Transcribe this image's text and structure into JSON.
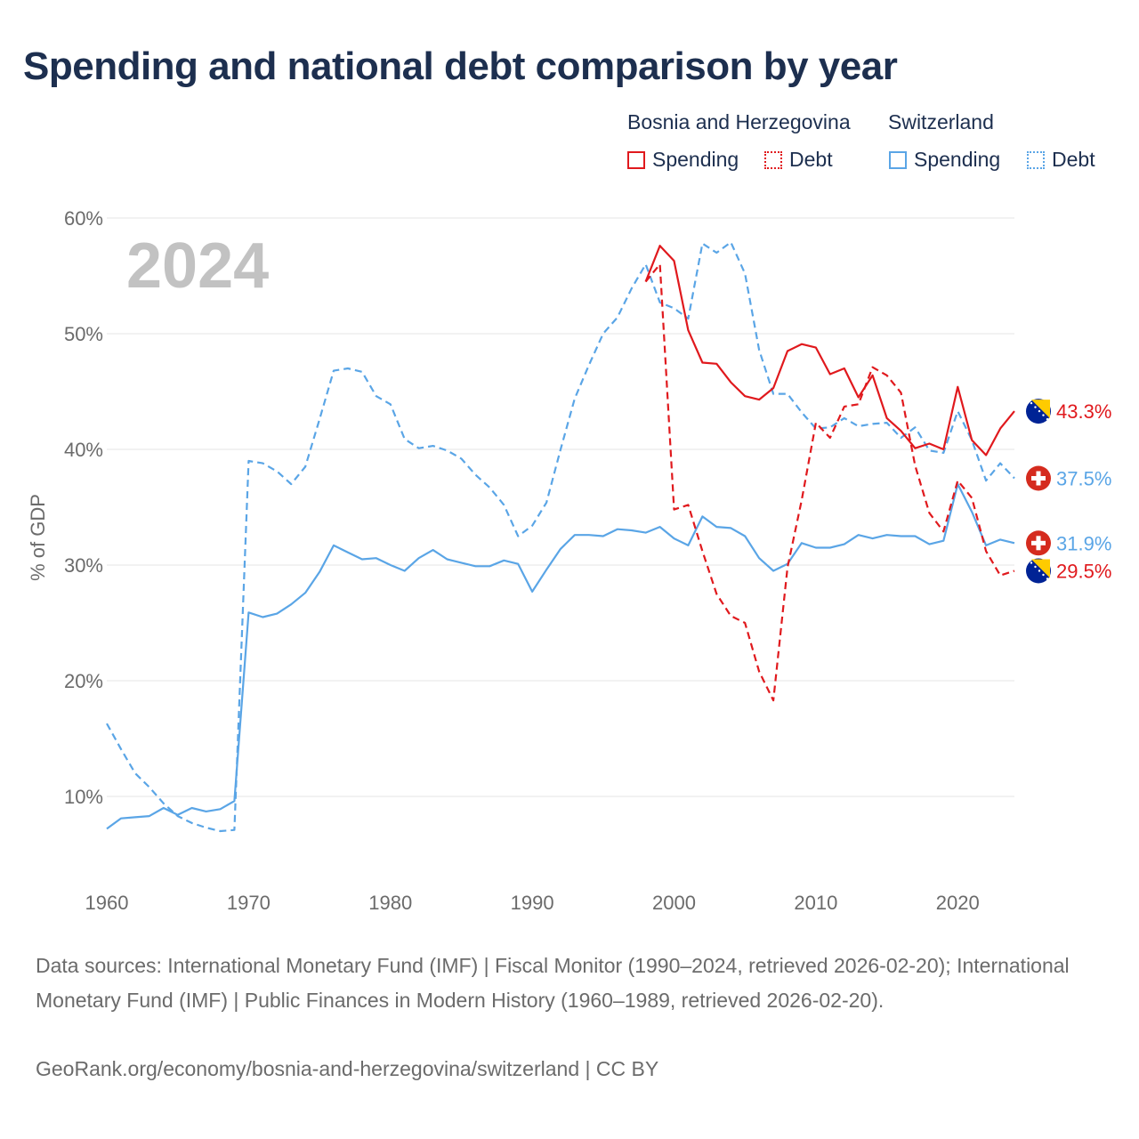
{
  "title": "Spending and national debt comparison by year",
  "legend": {
    "groups": [
      "Bosnia and Herzegovina",
      "Switzerland"
    ],
    "spending_label": "Spending",
    "debt_label": "Debt"
  },
  "colors": {
    "bosnia": "#e0191d",
    "switzerland": "#5aa5e6"
  },
  "footer": {
    "sources": "Data sources: International Monetary Fund (IMF) | Fiscal Monitor (1990–2024, retrieved 2026-02-20); International Monetary Fund (IMF) | Public Finances in Modern History (1960–1989, retrieved 2026-02-20).",
    "credit": "GeoRank.org/economy/bosnia-and-herzegovina/switzerland | CC BY"
  },
  "chart_data": {
    "type": "line",
    "year_watermark": "2024",
    "ylabel": "% of GDP",
    "xlim": [
      1960,
      2024
    ],
    "ylim": [
      2,
      60
    ],
    "x_ticks": [
      1960,
      1970,
      1980,
      1990,
      2000,
      2010,
      2020
    ],
    "y_ticks": [
      10,
      20,
      30,
      40,
      50,
      60
    ],
    "y_tick_labels": [
      "10%",
      "20%",
      "30%",
      "40%",
      "50%",
      "60%"
    ],
    "grid": true,
    "series": [
      {
        "name": "Switzerland Debt",
        "country": "Switzerland",
        "kind": "Debt",
        "color": "#5aa5e6",
        "dashed": true,
        "end_label": "37.5%",
        "years": [
          1960,
          1961,
          1962,
          1963,
          1964,
          1965,
          1966,
          1967,
          1968,
          1969,
          1970,
          1971,
          1972,
          1973,
          1974,
          1975,
          1976,
          1977,
          1978,
          1979,
          1980,
          1981,
          1982,
          1983,
          1984,
          1985,
          1986,
          1987,
          1988,
          1989,
          1990,
          1991,
          1992,
          1993,
          1994,
          1995,
          1996,
          1997,
          1998,
          1999,
          2000,
          2001,
          2002,
          2003,
          2004,
          2005,
          2006,
          2007,
          2008,
          2009,
          2010,
          2011,
          2012,
          2013,
          2014,
          2015,
          2016,
          2017,
          2018,
          2019,
          2020,
          2021,
          2022,
          2023,
          2024
        ],
        "values": [
          16.3,
          14.1,
          12.0,
          10.8,
          9.4,
          8.3,
          7.7,
          7.3,
          7.0,
          7.1,
          39.0,
          38.8,
          38.1,
          37.0,
          38.5,
          42.6,
          46.8,
          47.0,
          46.7,
          44.6,
          43.9,
          40.9,
          40.1,
          40.3,
          39.9,
          39.2,
          37.8,
          36.7,
          35.2,
          32.5,
          33.4,
          35.4,
          40.0,
          44.4,
          47.3,
          50.0,
          51.4,
          53.9,
          56.0,
          52.7,
          52.2,
          51.3,
          57.8,
          57.0,
          57.9,
          55.2,
          48.6,
          44.8,
          44.8,
          43.2,
          41.8,
          41.9,
          42.7,
          42.0,
          42.2,
          42.3,
          41.0,
          41.9,
          39.9,
          39.7,
          43.3,
          40.8,
          37.3,
          38.8,
          37.5
        ]
      },
      {
        "name": "Switzerland Spending",
        "country": "Switzerland",
        "kind": "Spending",
        "color": "#5aa5e6",
        "dashed": false,
        "end_label": "31.9%",
        "years": [
          1960,
          1961,
          1962,
          1963,
          1964,
          1965,
          1966,
          1967,
          1968,
          1969,
          1970,
          1971,
          1972,
          1973,
          1974,
          1975,
          1976,
          1977,
          1978,
          1979,
          1980,
          1981,
          1982,
          1983,
          1984,
          1985,
          1986,
          1987,
          1988,
          1989,
          1990,
          1991,
          1992,
          1993,
          1994,
          1995,
          1996,
          1997,
          1998,
          1999,
          2000,
          2001,
          2002,
          2003,
          2004,
          2005,
          2006,
          2007,
          2008,
          2009,
          2010,
          2011,
          2012,
          2013,
          2014,
          2015,
          2016,
          2017,
          2018,
          2019,
          2020,
          2021,
          2022,
          2023,
          2024
        ],
        "values": [
          7.2,
          8.1,
          8.2,
          8.3,
          9.0,
          8.4,
          9.0,
          8.7,
          8.9,
          9.6,
          25.9,
          25.5,
          25.8,
          26.6,
          27.6,
          29.4,
          31.7,
          31.1,
          30.5,
          30.6,
          30.0,
          29.5,
          30.6,
          31.3,
          30.5,
          30.2,
          29.9,
          29.9,
          30.4,
          30.1,
          27.7,
          29.6,
          31.4,
          32.6,
          32.6,
          32.5,
          33.1,
          33.0,
          32.8,
          33.3,
          32.3,
          31.7,
          34.2,
          33.3,
          33.2,
          32.5,
          30.6,
          29.5,
          30.1,
          31.9,
          31.5,
          31.5,
          31.8,
          32.6,
          32.3,
          32.6,
          32.5,
          32.5,
          31.8,
          32.1,
          37.0,
          34.6,
          31.7,
          32.2,
          31.9
        ]
      },
      {
        "name": "Bosnia and Herzegovina Debt",
        "country": "Bosnia and Herzegovina",
        "kind": "Debt",
        "color": "#e0191d",
        "dashed": true,
        "end_label": "29.5%",
        "years": [
          1998,
          1999,
          2000,
          2001,
          2002,
          2003,
          2004,
          2005,
          2006,
          2007,
          2008,
          2009,
          2010,
          2011,
          2012,
          2013,
          2014,
          2015,
          2016,
          2017,
          2018,
          2019,
          2020,
          2021,
          2022,
          2023,
          2024
        ],
        "values": [
          54.5,
          56.0,
          34.8,
          35.2,
          31.2,
          27.5,
          25.6,
          25.0,
          20.8,
          18.3,
          29.8,
          35.6,
          42.3,
          41.0,
          43.7,
          43.9,
          47.1,
          46.4,
          44.9,
          38.6,
          34.5,
          32.9,
          37.3,
          35.8,
          31.2,
          29.1,
          29.5
        ]
      },
      {
        "name": "Bosnia and Herzegovina Spending",
        "country": "Bosnia and Herzegovina",
        "kind": "Spending",
        "color": "#e0191d",
        "dashed": false,
        "end_label": "43.3%",
        "years": [
          1998,
          1999,
          2000,
          2001,
          2002,
          2003,
          2004,
          2005,
          2006,
          2007,
          2008,
          2009,
          2010,
          2011,
          2012,
          2013,
          2014,
          2015,
          2016,
          2017,
          2018,
          2019,
          2020,
          2021,
          2022,
          2023,
          2024
        ],
        "values": [
          54.5,
          57.6,
          56.3,
          50.3,
          47.5,
          47.4,
          45.8,
          44.6,
          44.3,
          45.3,
          48.5,
          49.1,
          48.8,
          46.5,
          47.0,
          44.5,
          46.4,
          42.7,
          41.6,
          40.1,
          40.5,
          40.0,
          45.4,
          40.8,
          39.5,
          41.8,
          43.3
        ]
      }
    ]
  }
}
